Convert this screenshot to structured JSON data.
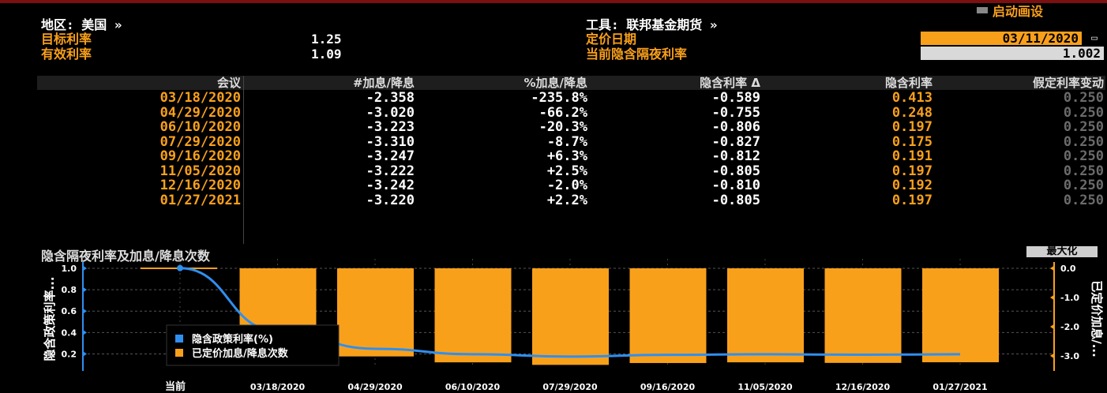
{
  "header": {
    "region_label": "地区: 美国 »",
    "target_rate_label": "目标利率",
    "target_rate_value": "1.25",
    "effective_rate_label": "有效利率",
    "effective_rate_value": "1.09",
    "instrument_label": "工具: 联邦基金期货 »",
    "pricing_date_label": "定价日期",
    "pricing_date_value": "03/11/2020",
    "implied_overnight_label": "当前隐含隔夜利率",
    "implied_overnight_value": "1.002",
    "defaults_label": "启动画设"
  },
  "table": {
    "headers": [
      "会议",
      "#加息/降息",
      "%加息/降息",
      "隐含利率 Δ",
      "隐含利率",
      "假定利率变动"
    ],
    "rows": [
      [
        "03/18/2020",
        "-2.358",
        "-235.8%",
        "-0.589",
        "0.413",
        "0.250"
      ],
      [
        "04/29/2020",
        "-3.020",
        "-66.2%",
        "-0.755",
        "0.248",
        "0.250"
      ],
      [
        "06/10/2020",
        "-3.223",
        "-20.3%",
        "-0.806",
        "0.197",
        "0.250"
      ],
      [
        "07/29/2020",
        "-3.310",
        "-8.7%",
        "-0.827",
        "0.175",
        "0.250"
      ],
      [
        "09/16/2020",
        "-3.247",
        "+6.3%",
        "-0.812",
        "0.191",
        "0.250"
      ],
      [
        "11/05/2020",
        "-3.222",
        "+2.5%",
        "-0.805",
        "0.197",
        "0.250"
      ],
      [
        "12/16/2020",
        "-3.242",
        "-2.0%",
        "-0.810",
        "0.192",
        "0.250"
      ],
      [
        "01/27/2021",
        "-3.220",
        "+2.2%",
        "-0.805",
        "0.197",
        "0.250"
      ]
    ]
  },
  "chart_title": "隐含隔夜利率及加息/降息次数",
  "maximize_label": "最大化",
  "colors": {
    "accent": "#f9a01b",
    "line": "#2f8ff0",
    "background": "#000000"
  },
  "chart_data": {
    "type": "bar",
    "categories": [
      "当前",
      "03/18/2020",
      "04/29/2020",
      "06/10/2020",
      "07/29/2020",
      "09/16/2020",
      "11/05/2020",
      "12/16/2020",
      "01/27/2021"
    ],
    "series": [
      {
        "name": "隐含政策利率(%)",
        "type": "line",
        "axis": "left",
        "values": [
          1.002,
          0.413,
          0.248,
          0.197,
          0.175,
          0.191,
          0.197,
          0.192,
          0.197
        ]
      },
      {
        "name": "已定价加息/降息次数",
        "type": "bar",
        "axis": "right",
        "values": [
          0,
          -2.358,
          -3.02,
          -3.223,
          -3.31,
          -3.247,
          -3.222,
          -3.242,
          -3.22
        ]
      }
    ],
    "ylabel": "隐含政策利率...",
    "y2label": "已定价加息/...",
    "ylim": [
      0.1,
      1.0
    ],
    "y2lim": [
      -3.3,
      0.0
    ],
    "yticks": [
      "1.0",
      "0.8",
      "0.6",
      "0.4",
      "0.2"
    ],
    "y2ticks": [
      "0.0",
      "-1.0",
      "-2.0",
      "-3.0"
    ],
    "legend": "bottom-left",
    "grid": true
  }
}
